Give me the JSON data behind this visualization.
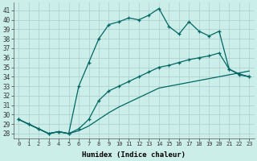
{
  "xlabel": "Humidex (Indice chaleur)",
  "bg_color": "#cceee8",
  "grid_color": "#aacccc",
  "line_color": "#006666",
  "xlim": [
    -0.5,
    23.5
  ],
  "ylim": [
    27.5,
    41.8
  ],
  "yticks": [
    28,
    29,
    30,
    31,
    32,
    33,
    34,
    35,
    36,
    37,
    38,
    39,
    40,
    41
  ],
  "xticks": [
    0,
    1,
    2,
    3,
    4,
    5,
    6,
    7,
    8,
    9,
    10,
    11,
    12,
    13,
    14,
    15,
    16,
    17,
    18,
    19,
    20,
    21,
    22,
    23
  ],
  "main_series": [
    29.5,
    29.0,
    28.5,
    28.0,
    28.2,
    28.0,
    33.0,
    35.5,
    38.0,
    39.5,
    39.8,
    40.2,
    40.0,
    40.5,
    41.2,
    39.3,
    38.5,
    39.8,
    38.8,
    38.3,
    38.8,
    34.8,
    34.2,
    34.0
  ],
  "line2": [
    29.5,
    29.0,
    28.5,
    28.0,
    28.2,
    28.0,
    28.5,
    29.5,
    31.5,
    32.5,
    33.0,
    33.5,
    34.0,
    34.5,
    35.0,
    35.2,
    35.5,
    35.8,
    36.0,
    36.2,
    36.5,
    34.8,
    34.3,
    34.0
  ],
  "line3": [
    29.5,
    29.0,
    28.5,
    28.0,
    28.2,
    28.0,
    28.3,
    28.8,
    29.5,
    30.2,
    30.8,
    31.3,
    31.8,
    32.3,
    32.8,
    33.0,
    33.2,
    33.4,
    33.6,
    33.8,
    34.0,
    34.2,
    34.4,
    34.6
  ]
}
